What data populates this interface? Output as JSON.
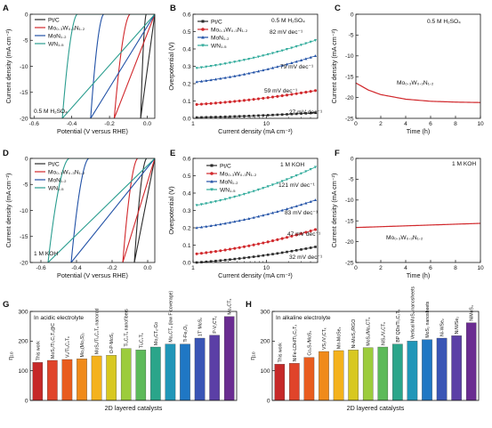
{
  "panel_letters": [
    "A",
    "B",
    "C",
    "D",
    "E",
    "F",
    "G",
    "H"
  ],
  "chart_data": [
    {
      "id": "A",
      "type": "line",
      "xlabel": "Potential (V versus RHE)",
      "ylabel": "Current density (mA cm⁻²)",
      "xlim": [
        -0.62,
        0.04
      ],
      "ylim": [
        -20,
        0
      ],
      "xticks": [
        -0.6,
        -0.4,
        -0.2,
        0.0
      ],
      "xtick_labels": [
        "-0.6",
        "-0.4",
        "-0.2",
        "0.0"
      ],
      "yticks": [
        -20,
        -15,
        -10,
        -5,
        0
      ],
      "ytick_labels": [
        "-20",
        "-15",
        "-10",
        "-5",
        "0"
      ],
      "annotation": "0.5 M H₂SO₄",
      "legend": [
        "Pt/C",
        "Mo₀.₃W₀.₃N₁.₂",
        "MoN₁.₂",
        "WN₁.₅"
      ],
      "series": [
        {
          "name": "Pt/C",
          "color": "#2b2b2b",
          "onset": -0.005,
          "x20": -0.035
        },
        {
          "name": "Mo₀.₃W₀.₃N₁.₂",
          "color": "#d1282c",
          "onset": -0.09,
          "x20": -0.175
        },
        {
          "name": "MoN₁.₂",
          "color": "#2151a6",
          "onset": -0.23,
          "x20": -0.3
        },
        {
          "name": "WN₁.₅",
          "color": "#2a9d8f",
          "onset": -0.37,
          "x20": -0.45
        }
      ]
    },
    {
      "id": "B",
      "type": "line",
      "xlabel": "Current density (mA cm⁻²)",
      "ylabel": "Overpotential (V)",
      "xscale": "log",
      "xlim": [
        1,
        50
      ],
      "ylim": [
        0,
        0.6
      ],
      "xticks": [
        1,
        10
      ],
      "xtick_labels": [
        "1",
        "10"
      ],
      "yticks": [
        0,
        0.1,
        0.2,
        0.3,
        0.4,
        0.5,
        0.6
      ],
      "ytick_labels": [
        "0.0",
        "0.1",
        "0.2",
        "0.3",
        "0.4",
        "0.5",
        "0.6"
      ],
      "annotation": "0.5 M H₂SO₄",
      "legend": [
        "Pt/C",
        "Mo₀.₃W₀.₃N₁.₂",
        "MoN₁.₂",
        "WN₁.₅"
      ],
      "series": [
        {
          "name": "Pt/C",
          "color": "#2b2b2b",
          "marker": "square",
          "y_start": 0.005,
          "y_end": 0.032,
          "tafel": "27 mV dec⁻¹"
        },
        {
          "name": "Mo₀.₃W₀.₃N₁.₂",
          "color": "#d1282c",
          "marker": "circle",
          "y_start": 0.08,
          "y_end": 0.16,
          "tafel": "59 mV dec⁻¹"
        },
        {
          "name": "MoN₁.₂",
          "color": "#2151a6",
          "marker": "triangle",
          "y_start": 0.21,
          "y_end": 0.36,
          "tafel": "79 mV dec⁻¹"
        },
        {
          "name": "WN₁.₅",
          "color": "#2eaa9a",
          "marker": "triangle-down",
          "y_start": 0.29,
          "y_end": 0.45,
          "tafel": "82 mV dec⁻¹"
        }
      ]
    },
    {
      "id": "C",
      "type": "line",
      "xlabel": "Time (h)",
      "ylabel": "Current density (mA cm⁻²)",
      "xlim": [
        0,
        10
      ],
      "ylim": [
        -25,
        0
      ],
      "xticks": [
        0,
        2,
        4,
        6,
        8,
        10
      ],
      "xtick_labels": [
        "0",
        "2",
        "4",
        "6",
        "8",
        "10"
      ],
      "yticks": [
        -25,
        -20,
        -15,
        -10,
        -5,
        0
      ],
      "ytick_labels": [
        "-25",
        "-20",
        "-15",
        "-10",
        "-5",
        "0"
      ],
      "annotation": "0.5 M H₂SO₄",
      "label": "Mo₀.₃W₀.₃N₁.₂",
      "series": [
        {
          "color": "#d1282c",
          "x": [
            0,
            1,
            2,
            4,
            6,
            8,
            10
          ],
          "y": [
            -16.5,
            -18.2,
            -19.3,
            -20.4,
            -20.9,
            -21.1,
            -21.2
          ]
        }
      ]
    },
    {
      "id": "D",
      "type": "line",
      "xlabel": "Potential (V versus RHE)",
      "ylabel": "Current density (mA cm⁻²)",
      "xlim": [
        -0.66,
        0.04
      ],
      "ylim": [
        -20,
        0
      ],
      "xticks": [
        -0.6,
        -0.4,
        -0.2,
        0.0
      ],
      "xtick_labels": [
        "-0.6",
        "-0.4",
        "-0.2",
        "0.0"
      ],
      "yticks": [
        -20,
        -15,
        -10,
        -5,
        0
      ],
      "ytick_labels": [
        "-20",
        "-15",
        "-10",
        "-5",
        "0"
      ],
      "annotation": "1 M KOH",
      "legend": [
        "Pt/C",
        "Mo₀.₃W₀.₃N₁.₂",
        "MoN₁.₂",
        "WN₁.₅"
      ],
      "series": [
        {
          "name": "Pt/C",
          "color": "#2b2b2b",
          "onset": -0.005,
          "x20": -0.075
        },
        {
          "name": "Mo₀.₃W₀.₃N₁.₂",
          "color": "#d1282c",
          "onset": -0.055,
          "x20": -0.14
        },
        {
          "name": "MoN₁.₂",
          "color": "#2151a6",
          "onset": -0.33,
          "x20": -0.43
        },
        {
          "name": "WN₁.₅",
          "color": "#2a9d8f",
          "onset": -0.44,
          "x20": -0.56
        }
      ]
    },
    {
      "id": "E",
      "type": "line",
      "xlabel": "Current density (mA cm⁻²)",
      "ylabel": "Overpotential (V)",
      "xscale": "log",
      "xlim": [
        1,
        50
      ],
      "ylim": [
        0,
        0.6
      ],
      "xticks": [
        1,
        10
      ],
      "xtick_labels": [
        "1",
        "10"
      ],
      "yticks": [
        0,
        0.1,
        0.2,
        0.3,
        0.4,
        0.5,
        0.6
      ],
      "ytick_labels": [
        "0.0",
        "0.1",
        "0.2",
        "0.3",
        "0.4",
        "0.5",
        "0.6"
      ],
      "annotation": "1 M KOH",
      "legend": [
        "Pt/C",
        "Mo₀.₃W₀.₃N₁.₂",
        "MoN₁.₂",
        "WN₁.₅"
      ],
      "series": [
        {
          "name": "Pt/C",
          "color": "#2b2b2b",
          "marker": "square",
          "y_start": 0.0,
          "y_end": 0.09,
          "tafel": "32 mV dec⁻¹"
        },
        {
          "name": "Mo₀.₃W₀.₃N₁.₂",
          "color": "#d1282c",
          "marker": "circle",
          "y_start": 0.05,
          "y_end": 0.19,
          "tafel": "47 mV dec⁻¹"
        },
        {
          "name": "MoN₁.₂",
          "color": "#2151a6",
          "marker": "triangle",
          "y_start": 0.2,
          "y_end": 0.36,
          "tafel": "83 mV dec⁻¹"
        },
        {
          "name": "WN₁.₅",
          "color": "#2eaa9a",
          "marker": "triangle-down",
          "y_start": 0.33,
          "y_end": 0.55,
          "tafel": "121 mV dec⁻¹"
        }
      ]
    },
    {
      "id": "F",
      "type": "line",
      "xlabel": "Time (h)",
      "ylabel": "Current density (mA cm⁻²)",
      "xlim": [
        0,
        10
      ],
      "ylim": [
        -25,
        0
      ],
      "xticks": [
        0,
        2,
        4,
        6,
        8,
        10
      ],
      "xtick_labels": [
        "0",
        "2",
        "4",
        "6",
        "8",
        "10"
      ],
      "yticks": [
        -25,
        -20,
        -15,
        -10,
        -5,
        0
      ],
      "ytick_labels": [
        "-25",
        "-20",
        "-15",
        "-10",
        "-5",
        "0"
      ],
      "annotation": "1 M KOH",
      "label": "Mo₀.₃W₀.₃N₁.₂",
      "series": [
        {
          "color": "#d1282c",
          "x": [
            0,
            2,
            4,
            6,
            8,
            10
          ],
          "y": [
            -16.6,
            -16.4,
            -16.2,
            -16.0,
            -15.8,
            -15.6
          ]
        }
      ]
    },
    {
      "id": "G",
      "type": "bar",
      "xlabel": "2D layered catalysts",
      "ylabel": "η₁₀",
      "ylim": [
        0,
        300
      ],
      "yticks": [
        0,
        100,
        200,
        300
      ],
      "ytick_labels": [
        "0",
        "100",
        "200",
        "300"
      ],
      "annotation": "In acidic electrolyte",
      "categories": [
        "This work",
        "MoS₂/Ti₃C₂Tₓ@C",
        "V₂/Ti₃C₂Tₓ",
        "Mo₂(Mo₂S)₂",
        "MoS₂/Ti₃C₂Tₓ nanorod",
        "O-P-MoS₂",
        "Ti₃C₂Tₓ nanofibers",
        "Ti₃C₂Tₓ",
        "Mo₂CTₓ-Co",
        "Mo₂CTₓ (low F coverage)",
        "Ti-Fe₂O₃",
        "1T' MoS₂",
        "P-V₂CTₓ",
        "Mo₂CTₓ"
      ],
      "values": [
        128,
        135,
        138,
        140,
        150,
        152,
        175,
        170,
        180,
        190,
        190,
        210,
        220,
        283
      ],
      "colors": [
        "#c62828",
        "#e0442a",
        "#e85c1f",
        "#f08a1a",
        "#f4b21d",
        "#d8c820",
        "#9ccc3c",
        "#5dba5a",
        "#2aa58a",
        "#2196b8",
        "#1f77c4",
        "#3a55b5",
        "#5b3fa6",
        "#6a2c91"
      ]
    },
    {
      "id": "H",
      "type": "bar",
      "xlabel": "2D layered catalysts",
      "ylabel": "η₁₀",
      "ylim": [
        0,
        300
      ],
      "yticks": [
        0,
        100,
        200,
        300
      ],
      "ytick_labels": [
        "0",
        "100",
        "200",
        "300"
      ],
      "annotation": "In alkaline electrolyte",
      "categories": [
        "This work",
        "NiFe-LDH/Ti₃C₂Tₓ",
        "Co₂S₇/MoS₂",
        "VS₂/V₂CTₓ",
        "Mn-MoSe₂",
        "Ni-MoS₂/RGO",
        "MoS₂/Mo₂CTₓ",
        "NiS₂/V₂CTₓ",
        "BP QDs/Ti₃C₂Tₓ",
        "Vertical MoS₂ nanosheets",
        "MoS₂ nanosheets",
        "Ni-WSe₂",
        "Ni/WSe₂",
        "NiMoS₄"
      ],
      "values": [
        122,
        125,
        145,
        165,
        168,
        170,
        178,
        180,
        190,
        200,
        205,
        210,
        218,
        262
      ],
      "colors": [
        "#c62828",
        "#e0442a",
        "#e85c1f",
        "#f08a1a",
        "#f4b21d",
        "#d8c820",
        "#9ccc3c",
        "#5dba5a",
        "#2aa58a",
        "#2196b8",
        "#1f77c4",
        "#3a55b5",
        "#5b3fa6",
        "#6a2c91"
      ]
    }
  ]
}
